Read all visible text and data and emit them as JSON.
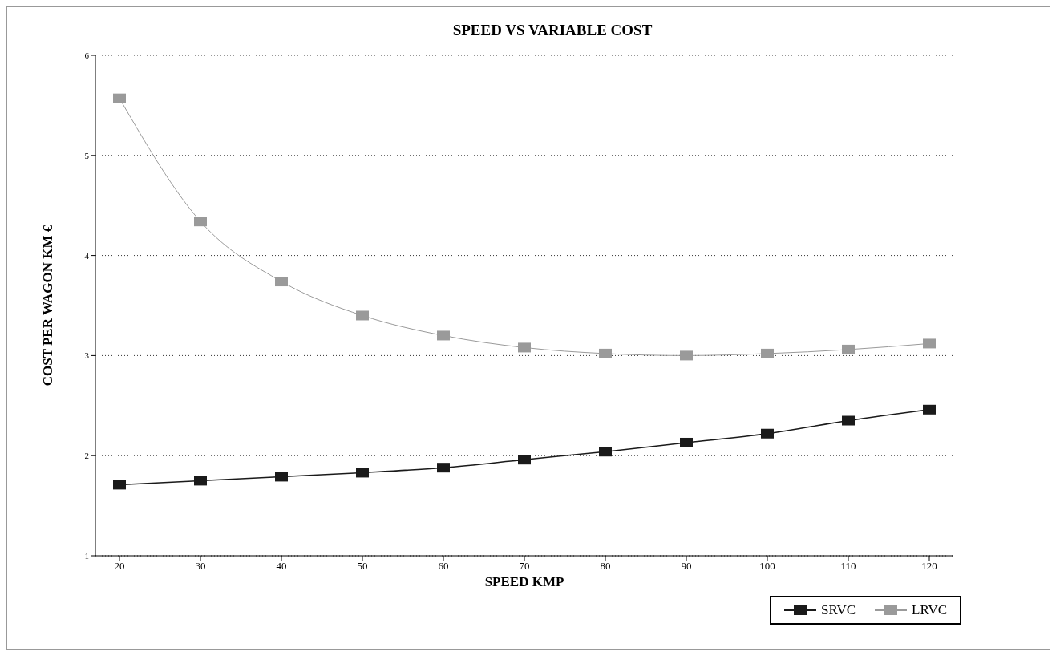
{
  "chart_data": {
    "type": "line",
    "title": "SPEED VS VARIABLE COST",
    "xlabel": "SPEED KMP",
    "ylabel": "COST PER WAGON KM  €",
    "categories": [
      "20",
      "30",
      "40",
      "50",
      "60",
      "70",
      "80",
      "90",
      "100",
      "110",
      "120"
    ],
    "series": [
      {
        "name": "SRVC",
        "color": "#1a1a1a",
        "values": [
          1.71,
          1.75,
          1.79,
          1.83,
          1.88,
          1.96,
          2.04,
          2.13,
          2.22,
          2.35,
          2.46
        ]
      },
      {
        "name": "LRVC",
        "color": "#9a9a9a",
        "values": [
          5.57,
          4.34,
          3.74,
          3.4,
          3.2,
          3.08,
          3.02,
          3.0,
          3.02,
          3.06,
          3.12
        ]
      }
    ],
    "ylim": [
      1,
      6
    ],
    "yticks": [
      1,
      2,
      3,
      4,
      5,
      6
    ],
    "grid": "y",
    "legend": "bottom right",
    "marker": "square",
    "line_style": "solid"
  }
}
